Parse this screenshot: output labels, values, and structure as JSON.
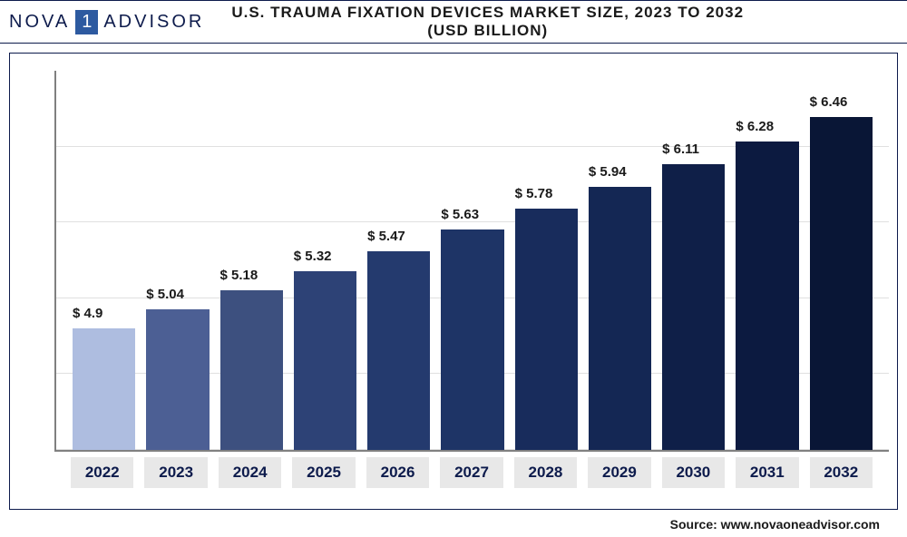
{
  "logo": {
    "left": "NOVA",
    "mid": "1",
    "right": "ADVISOR"
  },
  "title": "U.S. TRAUMA FIXATION DEVICES MARKET SIZE, 2023 TO 2032 (USD BILLION)",
  "source": "Source: www.novaoneadvisor.com",
  "chart": {
    "type": "bar",
    "categories": [
      "2022",
      "2023",
      "2024",
      "2025",
      "2026",
      "2027",
      "2028",
      "2029",
      "2030",
      "2031",
      "2032"
    ],
    "values": [
      4.9,
      5.04,
      5.18,
      5.32,
      5.47,
      5.63,
      5.78,
      5.94,
      6.11,
      6.28,
      6.46
    ],
    "value_labels": [
      "$ 4.9",
      "$ 5.04",
      "$ 5.18",
      "$ 5.32",
      "$ 5.47",
      "$ 5.63",
      "$ 5.78",
      "$ 5.94",
      "$ 6.11",
      "$ 6.28",
      "$ 6.46"
    ],
    "bar_colors": [
      "#aebde0",
      "#4c5f94",
      "#3d507f",
      "#2d4276",
      "#243a6e",
      "#1e3466",
      "#182c5c",
      "#142754",
      "#0f1f48",
      "#0c1a40",
      "#091636"
    ],
    "background_color": "#ffffff",
    "axis_color": "#808080",
    "grid_color": "#e0e0e0",
    "x_label_bg": "#e8e8e8",
    "x_label_color": "#0d1b4c",
    "value_min": 4.0,
    "value_max": 6.8,
    "grid_positions_pct": [
      0,
      20,
      40,
      60,
      80
    ],
    "label_fontsize": 15,
    "xlabel_fontsize": 17,
    "title_fontsize": 17,
    "bar_width_ratio": 0.78
  }
}
